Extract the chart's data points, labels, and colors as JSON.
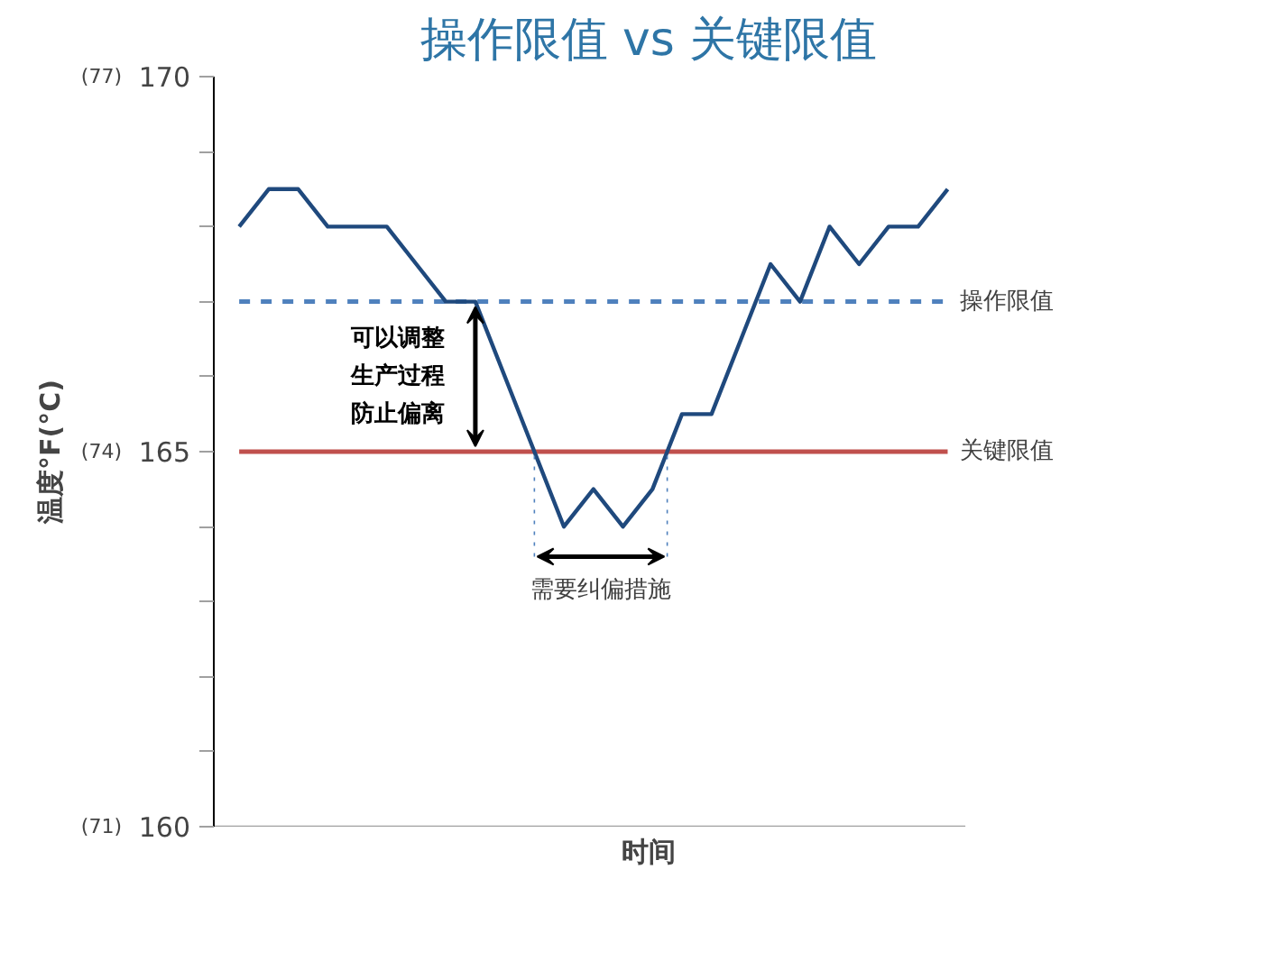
{
  "chart_data": {
    "type": "line",
    "title": "操作限值 vs 关键限值",
    "xlabel": "时间",
    "y2label": "温度°F(°C)",
    "categories": [
      null,
      null,
      null,
      null,
      null,
      null,
      null,
      null,
      null,
      null,
      null,
      null,
      null,
      null,
      null,
      null,
      null,
      null,
      null,
      null,
      null,
      null,
      null,
      null,
      null
    ],
    "series": [
      {
        "color": "#1f497d",
        "values": [
          168,
          168.5,
          168.5,
          168,
          168,
          168,
          167.5,
          167,
          167,
          166,
          165,
          164,
          164.5,
          164,
          164.5,
          165.5,
          165.5,
          166.5,
          167.5,
          167,
          168,
          167.5,
          168,
          168,
          168.5
        ]
      }
    ],
    "ylim": [
      160,
      170
    ],
    "yticks": [
      160,
      165,
      170
    ],
    "y2lim": [
      71.1,
      76.7
    ],
    "y2ticks": [
      {
        "value": 71.1,
        "label": "(71)"
      },
      {
        "value": 73.9,
        "label": "(74)"
      },
      {
        "value": 76.7,
        "label": "(77)"
      }
    ],
    "ref_lines": [
      {
        "axis": "y",
        "value": 167,
        "label": "操作限值",
        "color": "#4f81bd",
        "line_style": "dashed"
      },
      {
        "axis": "y",
        "value": 165,
        "label": "关键限值",
        "color": "#c0504d",
        "line_style": "solid"
      }
    ],
    "annotations": [
      "可以调整生产过程防止偏离",
      "需要纠偏措施"
    ],
    "grid": false,
    "marker": "none",
    "line_style": "solid"
  }
}
